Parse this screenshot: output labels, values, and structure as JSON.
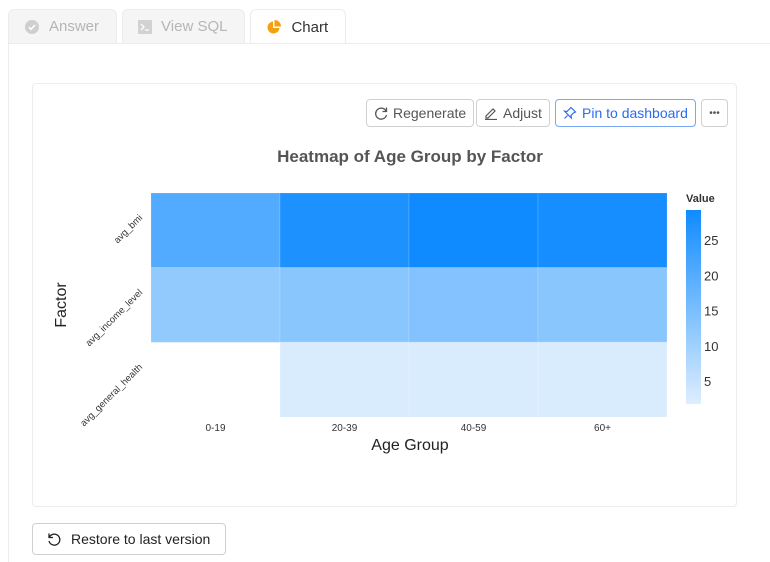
{
  "tabs": [
    {
      "label": "Answer",
      "icon": "check-circle-icon"
    },
    {
      "label": "View SQL",
      "icon": "terminal-icon"
    },
    {
      "label": "Chart",
      "icon": "pie-chart-icon",
      "active": true
    }
  ],
  "toolbar": {
    "regenerate": "Regenerate",
    "adjust": "Adjust",
    "pin": "Pin to dashboard",
    "more": "•••"
  },
  "restore_label": "Restore to last version",
  "colors": {
    "accent": "#2a6bf0",
    "low": "#deeefe",
    "high": "#0f8bff",
    "pie": "#f5a00f"
  },
  "chart_data": {
    "type": "heatmap",
    "title": "Heatmap of Age Group by Factor",
    "xlabel": "Age Group",
    "ylabel": "Factor",
    "x": [
      "0-19",
      "20-39",
      "40-59",
      "60+"
    ],
    "y": [
      "avg_bmi",
      "avg_income_level",
      "avg_general_health"
    ],
    "values": [
      [
        20.5,
        27.5,
        29.4,
        28.5
      ],
      [
        12,
        13,
        14,
        13
      ],
      [
        null,
        2.5,
        2.5,
        2.5
      ]
    ],
    "legend": {
      "title": "Value",
      "ticks": [
        5,
        10,
        15,
        20,
        25
      ],
      "range": [
        1.9,
        29.4
      ],
      "placement": "right"
    }
  }
}
